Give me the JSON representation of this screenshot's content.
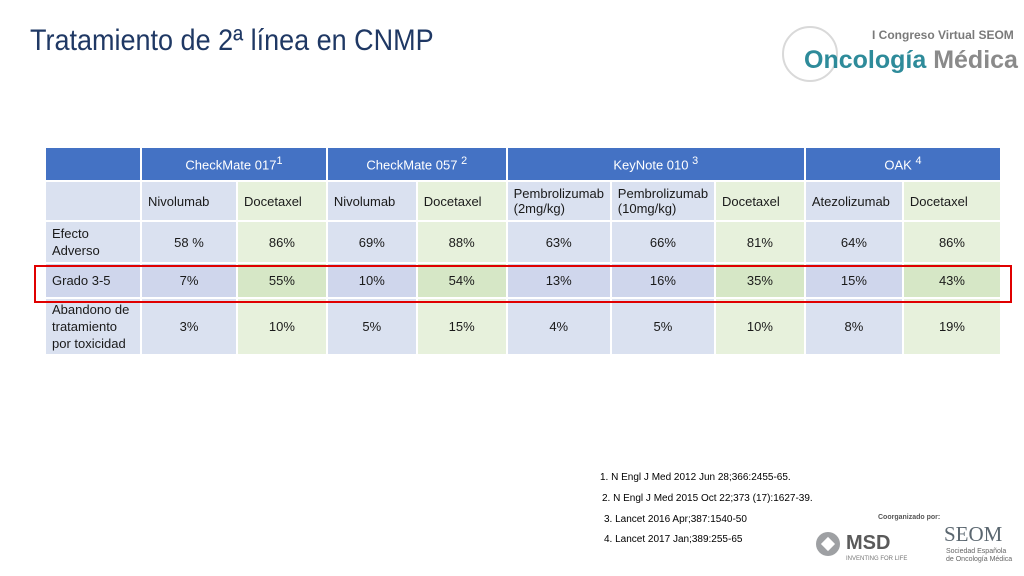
{
  "title": "Tratamiento de 2ª línea en CNMP",
  "logo_top": {
    "congress": "I Congreso Virtual SEOM",
    "brand_a": "Oncología",
    "brand_b": "Médica"
  },
  "table": {
    "trials": [
      {
        "name": "CheckMate 017",
        "ref": "1"
      },
      {
        "name": "CheckMate 057",
        "ref": "2"
      },
      {
        "name": "KeyNote 010",
        "ref": "3"
      },
      {
        "name": "OAK",
        "ref": "4"
      }
    ],
    "arms": [
      "Nivolumab",
      "Docetaxel",
      "Nivolumab",
      "Docetaxel",
      "Pembrolizumab (2mg/kg)",
      "Pembrolizumab (10mg/kg)",
      "Docetaxel",
      "Atezolizumab",
      "Docetaxel"
    ],
    "rows": [
      {
        "label": "Efecto Adverso",
        "values": [
          "58 %",
          "86%",
          "69%",
          "88%",
          "63%",
          "66%",
          "81%",
          "64%",
          "86%"
        ]
      },
      {
        "label": "Grado 3-5",
        "values": [
          "7%",
          "55%",
          "10%",
          "54%",
          "13%",
          "16%",
          "35%",
          "15%",
          "43%"
        ]
      },
      {
        "label": "Abandono de tratamiento por toxicidad",
        "values": [
          "3%",
          "10%",
          "5%",
          "15%",
          "4%",
          "5%",
          "10%",
          "8%",
          "19%"
        ]
      }
    ]
  },
  "references": [
    "1. N Engl J Med 2012 Jun 28;366:2455-65.",
    "2. N Engl J Med 2015 Oct 22;373 (17):1627-39.",
    "3. Lancet  2016 Apr;387:1540-50",
    "4. Lancet  2017 Jan;389:255-65"
  ],
  "footer": {
    "coorganized": "Coorganizado por:",
    "msd_name": "MSD",
    "msd_tag": "INVENTING FOR LIFE",
    "seom_name": "SEOM",
    "seom_sub": "Sociedad Española de Oncología Médica"
  },
  "colors": {
    "header_blue": "#4472c4",
    "cell_blue": "#dae1f0",
    "cell_green": "#e7f1dc",
    "highlight_red": "#e00000",
    "title_navy": "#1f3864"
  }
}
